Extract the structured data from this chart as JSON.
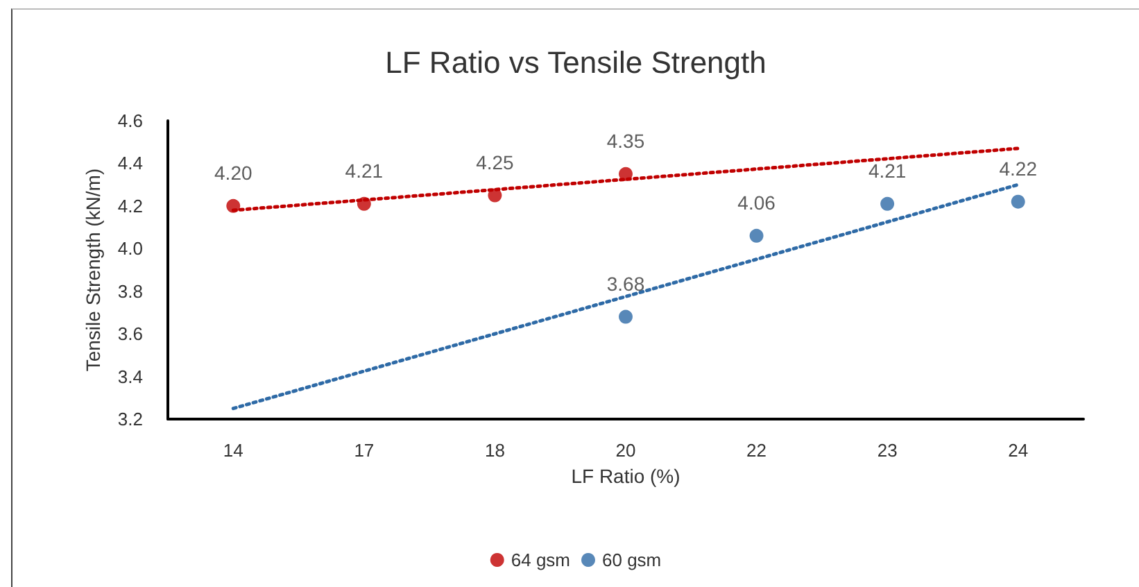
{
  "chart_data": {
    "type": "scatter",
    "title": "LF Ratio vs Tensile Strength",
    "xlabel": "LF Ratio (%)",
    "ylabel": "Tensile Strength (kN/m)",
    "categories": [
      "14",
      "17",
      "18",
      "20",
      "22",
      "23",
      "24"
    ],
    "series": [
      {
        "name": "64 gsm",
        "color": "#c00000",
        "values": [
          4.2,
          4.21,
          4.25,
          4.35,
          null,
          null,
          null
        ],
        "value_labels": [
          "4.20",
          "4.21",
          "4.25",
          "4.35",
          null,
          null,
          null
        ]
      },
      {
        "name": "60 gsm",
        "color": "#2e6aa6",
        "values": [
          null,
          null,
          null,
          3.68,
          4.06,
          4.21,
          4.22
        ],
        "value_labels": [
          null,
          null,
          null,
          "3.68",
          "4.06",
          "4.21",
          "4.22"
        ]
      },
      {
        "type": "line",
        "color": "#c00000",
        "x": [
          "14",
          "24"
        ],
        "values": [
          4.18,
          4.47
        ],
        "line_style": "dotted",
        "marker": "none"
      },
      {
        "type": "line",
        "color": "#2e6aa6",
        "x": [
          "14",
          "24"
        ],
        "values": [
          3.25,
          4.3
        ],
        "line_style": "dotted",
        "marker": "none"
      }
    ],
    "ylim": [
      3.2,
      4.6
    ],
    "yticks": [
      3.2,
      3.4,
      3.6,
      3.8,
      {
        "value": 4.0,
        "label": "4.0"
      },
      4.2,
      4.4,
      4.6
    ],
    "grid": false,
    "legend": "bottom",
    "marker": "circle"
  }
}
